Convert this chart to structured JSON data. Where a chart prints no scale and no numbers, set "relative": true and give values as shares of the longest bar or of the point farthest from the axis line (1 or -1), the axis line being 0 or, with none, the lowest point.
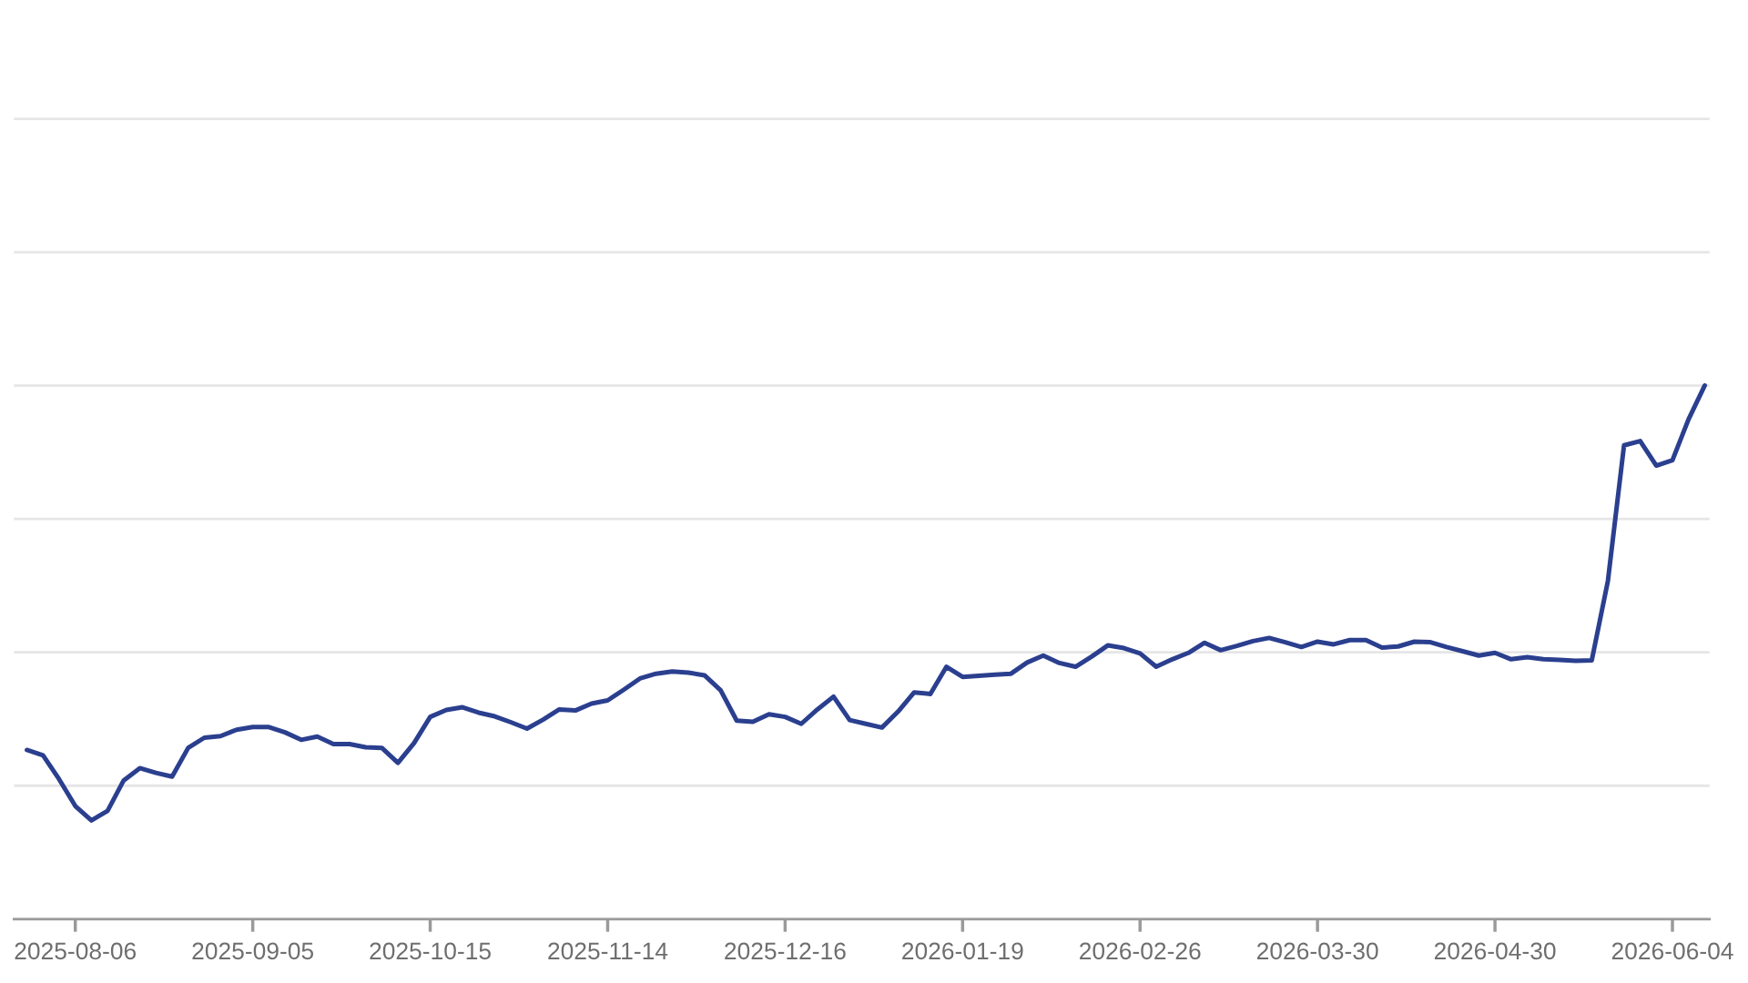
{
  "chart_data": {
    "type": "line",
    "relative": true,
    "grid": "y",
    "tick_labels": "x",
    "categories": [
      null,
      null,
      null,
      "2025-08-06",
      null,
      null,
      null,
      null,
      null,
      null,
      null,
      null,
      null,
      null,
      "2025-09-05",
      null,
      null,
      null,
      null,
      null,
      null,
      null,
      null,
      null,
      null,
      "2025-10-15",
      null,
      null,
      null,
      null,
      null,
      null,
      null,
      null,
      null,
      null,
      "2025-11-14",
      null,
      null,
      null,
      null,
      null,
      null,
      null,
      null,
      null,
      null,
      "2025-12-16",
      null,
      null,
      null,
      null,
      null,
      null,
      null,
      null,
      null,
      null,
      "2026-01-19",
      null,
      null,
      null,
      null,
      null,
      null,
      null,
      null,
      null,
      null,
      "2026-02-26",
      null,
      null,
      null,
      null,
      null,
      null,
      null,
      null,
      null,
      null,
      "2026-03-30",
      null,
      null,
      null,
      null,
      null,
      null,
      null,
      null,
      null,
      null,
      "2026-04-30",
      null,
      null,
      null,
      null,
      null,
      null,
      null,
      null,
      null,
      null,
      "2026-06-04",
      null,
      null
    ],
    "series": [
      {
        "color": "#2b3f8f",
        "values": [
          0.317,
          0.307,
          0.262,
          0.212,
          0.185,
          0.203,
          0.26,
          0.283,
          0.274,
          0.267,
          0.321,
          0.34,
          0.343,
          0.355,
          0.36,
          0.36,
          0.35,
          0.336,
          0.342,
          0.328,
          0.328,
          0.322,
          0.321,
          0.293,
          0.33,
          0.379,
          0.392,
          0.397,
          0.387,
          0.38,
          0.369,
          0.357,
          0.374,
          0.393,
          0.391,
          0.404,
          0.41,
          0.43,
          0.451,
          0.46,
          0.464,
          0.462,
          0.457,
          0.429,
          0.372,
          0.37,
          0.384,
          0.379,
          0.366,
          0.393,
          0.417,
          0.373,
          0.366,
          0.359,
          0.389,
          0.425,
          0.422,
          0.473,
          0.454,
          0.456,
          0.458,
          0.46,
          0.481,
          0.494,
          0.48,
          0.473,
          0.492,
          0.513,
          0.508,
          0.498,
          0.473,
          0.487,
          0.499,
          0.518,
          0.504,
          0.512,
          0.521,
          0.527,
          0.519,
          0.51,
          0.52,
          0.515,
          0.523,
          0.523,
          0.509,
          0.511,
          0.52,
          0.519,
          0.51,
          0.502,
          0.494,
          0.499,
          0.487,
          0.491,
          0.487,
          0.486,
          0.484,
          0.485,
          0.634,
          0.888,
          0.896,
          0.85,
          0.86,
          0.937,
          1
        ]
      }
    ]
  }
}
